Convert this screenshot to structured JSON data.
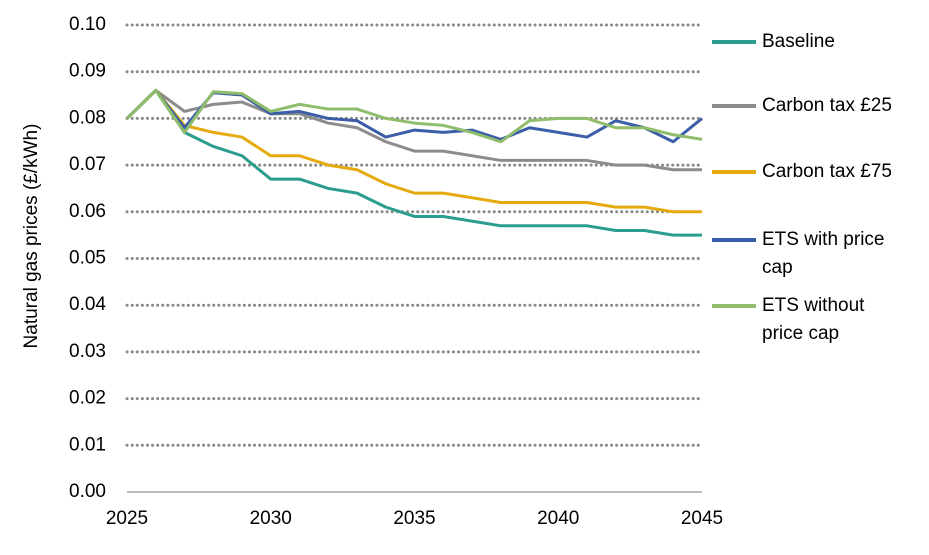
{
  "chart_data": {
    "type": "line",
    "y_label": "Natural gas prices (£/kWh)",
    "x": [
      2025,
      2026,
      2027,
      2028,
      2029,
      2030,
      2031,
      2032,
      2033,
      2034,
      2035,
      2036,
      2037,
      2038,
      2039,
      2040,
      2041,
      2042,
      2043,
      2044,
      2045
    ],
    "series": [
      {
        "name": "Baseline",
        "color": "#2a9d8f",
        "values": [
          0.08,
          0.086,
          0.077,
          0.074,
          0.072,
          0.067,
          0.067,
          0.065,
          0.064,
          0.061,
          0.059,
          0.059,
          0.058,
          0.057,
          0.057,
          0.057,
          0.057,
          0.056,
          0.056,
          0.055,
          0.055
        ]
      },
      {
        "name": "Carbon tax £25",
        "color": "#8c8c8c",
        "values": [
          0.08,
          0.086,
          0.0815,
          0.083,
          0.0835,
          0.081,
          0.081,
          0.079,
          0.078,
          0.075,
          0.073,
          0.073,
          0.072,
          0.071,
          0.071,
          0.071,
          0.071,
          0.07,
          0.07,
          0.069,
          0.069
        ]
      },
      {
        "name": "Carbon tax £75",
        "color": "#e5ab0e",
        "values": [
          0.08,
          0.086,
          0.0785,
          0.077,
          0.076,
          0.072,
          0.072,
          0.07,
          0.069,
          0.066,
          0.064,
          0.064,
          0.063,
          0.062,
          0.062,
          0.062,
          0.062,
          0.061,
          0.061,
          0.06,
          0.06
        ]
      },
      {
        "name": "ETS with price cap",
        "color": "#3b5ea8",
        "values": [
          0.08,
          0.086,
          0.078,
          0.0855,
          0.085,
          0.081,
          0.0815,
          0.08,
          0.0795,
          0.076,
          0.0775,
          0.077,
          0.0775,
          0.0755,
          0.078,
          0.077,
          0.076,
          0.0795,
          0.078,
          0.075,
          0.08
        ]
      },
      {
        "name": "ETS without price cap",
        "color": "#8fbd6c",
        "values": [
          0.08,
          0.086,
          0.077,
          0.0857,
          0.0853,
          0.0815,
          0.083,
          0.082,
          0.082,
          0.08,
          0.079,
          0.0785,
          0.077,
          0.075,
          0.0795,
          0.08,
          0.08,
          0.078,
          0.078,
          0.0765,
          0.0755
        ]
      }
    ],
    "xlim": [
      2025,
      2045
    ],
    "xticks": [
      2025,
      2030,
      2035,
      2040,
      2045
    ],
    "ylim": [
      0,
      0.1
    ],
    "yticks": [
      {
        "value": 0,
        "label": "0.00"
      },
      0.01,
      0.02,
      0.03,
      0.04,
      0.05,
      0.06,
      0.07,
      0.08,
      0.09,
      {
        "value": 0.1,
        "label": "0.10"
      }
    ],
    "grid": true,
    "legend": "right"
  }
}
